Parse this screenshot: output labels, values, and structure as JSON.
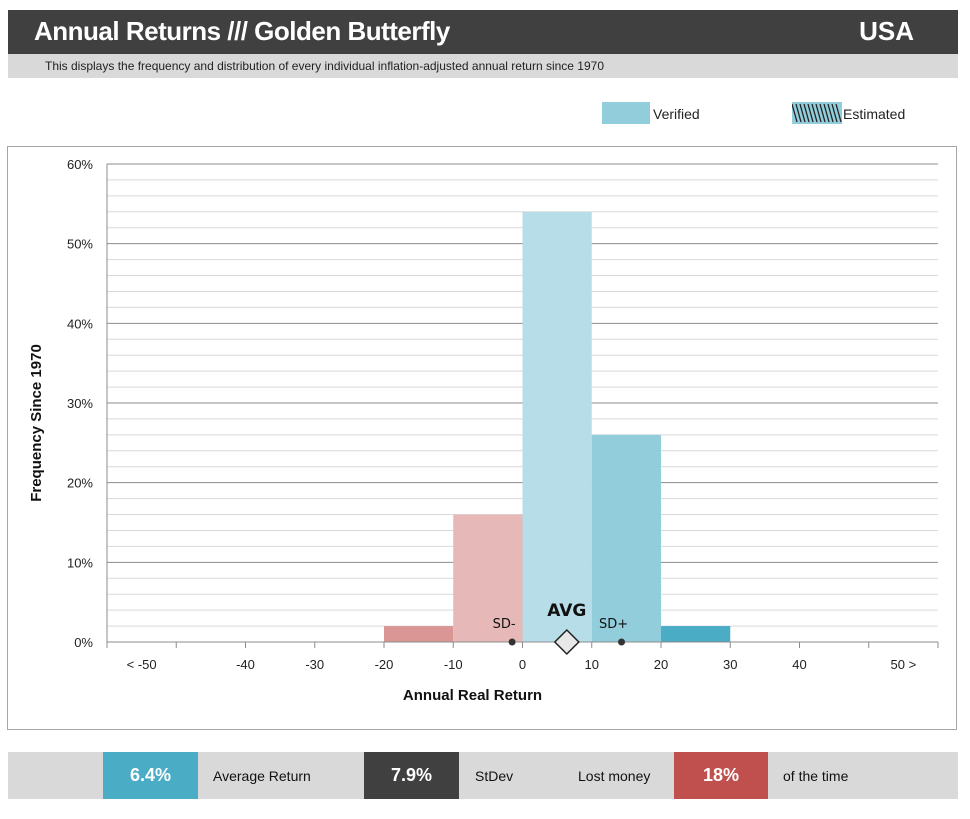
{
  "header": {
    "title": "Annual Returns /// Golden Butterfly",
    "country": "USA"
  },
  "subtitle": "This displays the frequency and distribution of every individual inflation-adjusted annual return since 1970",
  "legend": {
    "verified_label": "Verified",
    "estimated_label": "Estimated",
    "verified_color": "#92cddc",
    "estimated_color": "#92cddc"
  },
  "colors": {
    "negative_far": "#d99694",
    "negative_near": "#e6b9b8",
    "center": "#b7dee8",
    "positive_near": "#92cddc",
    "positive_far": "#4bacc6",
    "avg_box": "#4bacc6",
    "stdev_box": "#404040",
    "lost_box": "#c0504d"
  },
  "chart_data": {
    "type": "bar",
    "title": "",
    "xlabel": "Annual Real Return",
    "ylabel": "Frequency Since 1970",
    "x_tick_labels": [
      "< -50",
      "-40",
      "-30",
      "-20",
      "-10",
      "0",
      "10",
      "20",
      "30",
      "40",
      "50 >"
    ],
    "y_tick_labels": [
      "0%",
      "10%",
      "20%",
      "30%",
      "40%",
      "50%",
      "60%"
    ],
    "ylim": [
      0,
      60
    ],
    "xlim": [
      -60,
      60
    ],
    "grid": true,
    "bins": [
      {
        "from": -20,
        "to": -10,
        "value": 2,
        "color_key": "negative_far"
      },
      {
        "from": -10,
        "to": 0,
        "value": 16,
        "color_key": "negative_near"
      },
      {
        "from": 0,
        "to": 10,
        "value": 54,
        "color_key": "center"
      },
      {
        "from": 10,
        "to": 20,
        "value": 26,
        "color_key": "positive_near"
      },
      {
        "from": 20,
        "to": 30,
        "value": 2,
        "color_key": "positive_far"
      }
    ],
    "markers": {
      "avg": {
        "label": "AVG",
        "x": 6.4
      },
      "sd_minus": {
        "label": "SD-",
        "x": -1.5
      },
      "sd_plus": {
        "label": "SD+",
        "x": 14.3
      }
    }
  },
  "stats": {
    "avg_value": "6.4%",
    "avg_label": "Average Return",
    "stdev_value": "7.9%",
    "stdev_label": "StDev",
    "lost_label": "Lost money",
    "lost_value": "18%",
    "time_label": "of the time"
  }
}
